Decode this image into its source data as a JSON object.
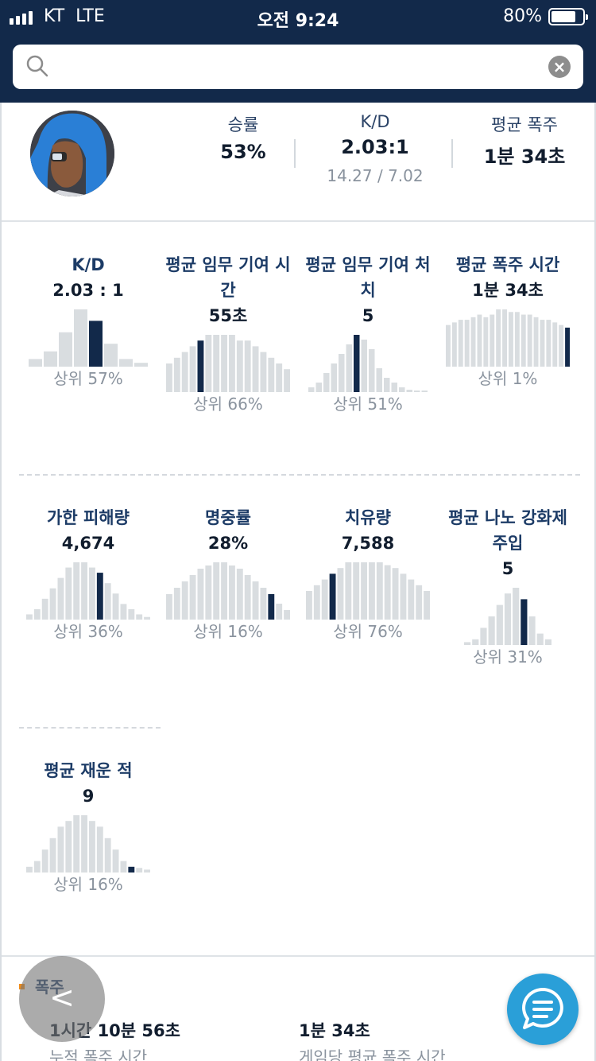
{
  "status_bar": {
    "carrier": "KT",
    "network": "LTE",
    "time": "오전 9:24",
    "battery": "80%",
    "battery_level": 0.8
  },
  "search": {
    "value": "",
    "placeholder": ""
  },
  "summary": {
    "win_rate_label": "승률",
    "win_rate": "53%",
    "kd_label": "K/D",
    "kd": "2.03:1",
    "kd_detail": "14.27 / 7.02",
    "avg_onfire_label": "평균 폭주",
    "avg_onfire": "1분 34초"
  },
  "stats": [
    {
      "title": "K/D",
      "value": "2.03 : 1",
      "percentile": "상위 57%",
      "histogram": [
        2,
        4,
        9,
        15,
        12,
        6,
        2,
        1
      ],
      "highlight": 4
    },
    {
      "title": "평균 임무 기여 시간",
      "value": "55초",
      "percentile": "상위 66%",
      "histogram": [
        5,
        6,
        7,
        8,
        9,
        10,
        10,
        10,
        10,
        9,
        9,
        8,
        7,
        6,
        5,
        4
      ],
      "highlight": 4
    },
    {
      "title": "평균 임무 기여 처치",
      "value": "5",
      "percentile": "상위 51%",
      "histogram": [
        1,
        2,
        4,
        6,
        8,
        10,
        12,
        11,
        9,
        5,
        3,
        2,
        1,
        0.5,
        0.3,
        0.2
      ],
      "highlight": 6
    },
    {
      "title": "평균 폭주 시간",
      "value": "1분 34초",
      "percentile": "상위 1%",
      "histogram": [
        8,
        8.5,
        9,
        9,
        9.5,
        10,
        9.5,
        10,
        11,
        11,
        10.5,
        10.5,
        10,
        10,
        9.5,
        9,
        9,
        8.5,
        8,
        7.5
      ],
      "highlight": 19
    },
    {
      "title": "가한 피해량",
      "value": "4,674",
      "percentile": "상위 36%",
      "histogram": [
        1,
        2,
        4,
        6,
        8,
        10,
        11,
        11,
        10,
        9,
        7,
        5,
        3,
        2,
        1,
        0.5
      ],
      "highlight": 9
    },
    {
      "title": "명중률",
      "value": "28%",
      "percentile": "상위 16%",
      "histogram": [
        4,
        5,
        6,
        7,
        8,
        8.5,
        9,
        9,
        8.5,
        8,
        7,
        6,
        5,
        4,
        2.5,
        1.5
      ],
      "highlight": 13
    },
    {
      "title": "치유량",
      "value": "7,588",
      "percentile": "상위 76%",
      "histogram": [
        5,
        6,
        7,
        8,
        9,
        10,
        10,
        10,
        10,
        10,
        9.5,
        9,
        8,
        7,
        6,
        5
      ],
      "highlight": 3
    },
    {
      "title": "평균 나노 강화제 주입",
      "value": "5",
      "percentile": "상위 31%",
      "histogram": [
        0.5,
        1,
        3,
        5,
        7,
        9,
        10,
        8,
        5,
        2,
        1
      ],
      "highlight": 7
    },
    {
      "title": "평균 재운 적",
      "value": "9",
      "percentile": "상위 16%",
      "histogram": [
        1,
        2,
        4,
        6,
        8,
        9,
        10,
        10,
        9,
        8,
        6,
        4,
        2,
        1,
        0.8,
        0.5
      ],
      "highlight": 13
    }
  ],
  "onfire_section": {
    "title": "폭주",
    "total_value": "1시간 10분 56초",
    "total_label": "누적 폭주 시간",
    "avg_value": "1분 34초",
    "avg_label": "게임당 평균 폭주 시간"
  },
  "back_button": {
    "label": "<"
  },
  "colors": {
    "header": "#12294a",
    "bar": "#d9dde0",
    "bar_highlight": "#12294a",
    "accent_orange": "#f08c1a",
    "chat": "#2a9fd8"
  },
  "icons": {
    "search": "search-icon",
    "clear": "clear-icon",
    "chat": "chat-bubble-icon"
  }
}
